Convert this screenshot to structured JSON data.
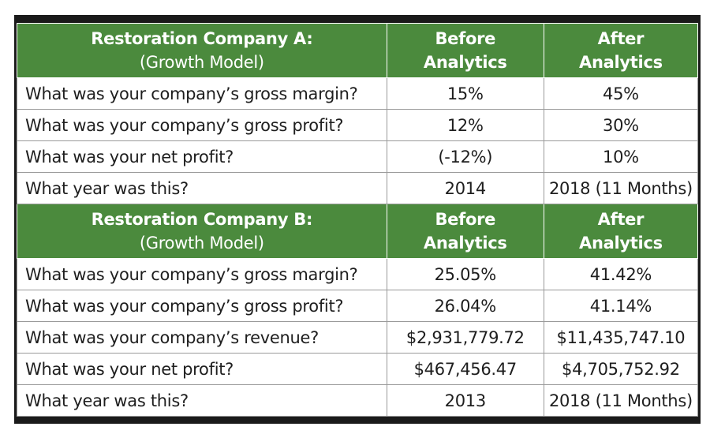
{
  "sections": [
    {
      "title": "Restoration Company A:",
      "subtitle": "(Growth Model)",
      "before_label": [
        "Before",
        "Analytics"
      ],
      "after_label": [
        "After",
        "Analytics"
      ],
      "rows": [
        {
          "q": "What was your company’s gross margin?",
          "before": "15%",
          "after": "45%"
        },
        {
          "q": "What was your company’s gross profit?",
          "before": "12%",
          "after": "30%"
        },
        {
          "q": "What was your net profit?",
          "before": "(-12%)",
          "after": "10%"
        },
        {
          "q": "What year was this?",
          "before": "2014",
          "after": "2018 (11 Months)"
        }
      ]
    },
    {
      "title": "Restoration Company B:",
      "subtitle": "(Growth Model)",
      "before_label": [
        "Before",
        "Analytics"
      ],
      "after_label": [
        "After",
        "Analytics"
      ],
      "rows": [
        {
          "q": "What was your company’s gross margin?",
          "before": "25.05%",
          "after": "41.42%"
        },
        {
          "q": "What was your company’s gross profit?",
          "before": "26.04%",
          "after": "41.14%"
        },
        {
          "q": "What was your company’s revenue?",
          "before": "$2,931,779.72",
          "after": "$11,435,747.10"
        },
        {
          "q": "What was your net profit?",
          "before": "$467,456.47",
          "after": "$4,705,752.92"
        },
        {
          "q": "What year was this?",
          "before": "2013",
          "after": "2018 (11 Months)"
        }
      ]
    }
  ],
  "colors": {
    "header_green": "#4b8a3d",
    "border": "#1a1a1a"
  }
}
